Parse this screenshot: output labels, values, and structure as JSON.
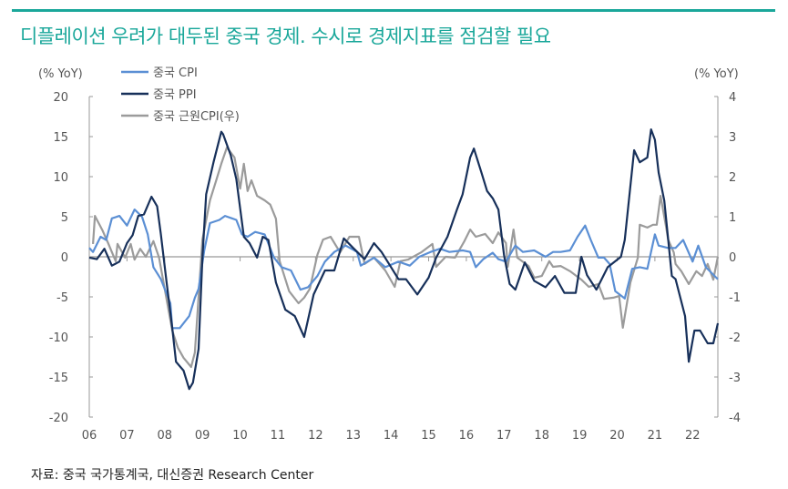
{
  "title": "디플레이션 우려가 대두된 중국 경제. 수시로 경제지표를 점검할 필요",
  "source": "자료: 중국 국가통계국, 대신증권 Research Center",
  "chart_data": {
    "type": "line",
    "title": "",
    "y_left_label": "(% YoY)",
    "y_right_label": "(% YoY)",
    "ylim_left": [
      -20,
      20
    ],
    "ylim_right": [
      -4,
      4
    ],
    "y_left_ticks": [
      20,
      15,
      10,
      5,
      0,
      -5,
      -10,
      -15,
      -20
    ],
    "y_right_ticks": [
      4,
      3,
      2,
      1,
      0,
      -1,
      -2,
      -3,
      -4
    ],
    "x_tick_labels": [
      "06",
      "07",
      "08",
      "09",
      "10",
      "11",
      "12",
      "13",
      "14",
      "15",
      "16",
      "17",
      "18",
      "19",
      "20",
      "21",
      "22"
    ],
    "xlim": [
      2006,
      2022.67
    ],
    "grid": false,
    "legend_position": "top-left",
    "series": [
      {
        "name": "중국 CPI",
        "axis": "left",
        "color": "#5b8fd4",
        "points": [
          [
            2006.0,
            1.1
          ],
          [
            2006.1,
            0.6
          ],
          [
            2006.3,
            2.5
          ],
          [
            2006.45,
            2.1
          ],
          [
            2006.6,
            4.8
          ],
          [
            2006.8,
            5.1
          ],
          [
            2007.0,
            3.9
          ],
          [
            2007.2,
            5.9
          ],
          [
            2007.4,
            5.0
          ],
          [
            2007.55,
            2.8
          ],
          [
            2007.7,
            -1.3
          ],
          [
            2007.9,
            -2.8
          ],
          [
            2008.15,
            -5.8
          ],
          [
            2008.2,
            -8.9
          ],
          [
            2008.4,
            -8.9
          ],
          [
            2008.65,
            -7.4
          ],
          [
            2008.8,
            -5.1
          ],
          [
            2008.9,
            -4.0
          ],
          [
            2009.05,
            0.8
          ],
          [
            2009.2,
            4.2
          ],
          [
            2009.45,
            4.6
          ],
          [
            2009.6,
            5.1
          ],
          [
            2009.9,
            4.6
          ],
          [
            2010.05,
            2.8
          ],
          [
            2010.2,
            2.5
          ],
          [
            2010.4,
            3.1
          ],
          [
            2010.65,
            2.8
          ],
          [
            2010.9,
            -0.1
          ],
          [
            2011.1,
            -1.3
          ],
          [
            2011.35,
            -1.7
          ],
          [
            2011.6,
            -4.1
          ],
          [
            2011.8,
            -3.8
          ],
          [
            2012.05,
            -2.4
          ],
          [
            2012.25,
            -0.6
          ],
          [
            2012.5,
            0.6
          ],
          [
            2012.8,
            1.4
          ],
          [
            2013.1,
            0.6
          ],
          [
            2013.2,
            -1.1
          ],
          [
            2013.55,
            -0.1
          ],
          [
            2013.85,
            -1.3
          ],
          [
            2014.2,
            -0.6
          ],
          [
            2014.5,
            -1.1
          ],
          [
            2014.75,
            0
          ],
          [
            2015.05,
            0.6
          ],
          [
            2015.3,
            1.0
          ],
          [
            2015.55,
            0.6
          ],
          [
            2015.9,
            0.8
          ],
          [
            2016.1,
            0.6
          ],
          [
            2016.25,
            -1.3
          ],
          [
            2016.45,
            -0.3
          ],
          [
            2016.7,
            0.5
          ],
          [
            2016.85,
            -0.3
          ],
          [
            2017.05,
            -0.6
          ],
          [
            2017.3,
            1.4
          ],
          [
            2017.5,
            0.6
          ],
          [
            2017.8,
            0.8
          ],
          [
            2018.1,
            0
          ],
          [
            2018.3,
            0.6
          ],
          [
            2018.5,
            0.6
          ],
          [
            2018.75,
            0.8
          ],
          [
            2018.95,
            2.5
          ],
          [
            2019.15,
            3.9
          ],
          [
            2019.3,
            2.1
          ],
          [
            2019.5,
            -0.1
          ],
          [
            2019.65,
            -0.1
          ],
          [
            2019.8,
            -0.9
          ],
          [
            2019.95,
            -4.3
          ],
          [
            2020.2,
            -5.2
          ],
          [
            2020.4,
            -1.5
          ],
          [
            2020.6,
            -1.3
          ],
          [
            2020.8,
            -1.5
          ],
          [
            2021.0,
            2.8
          ],
          [
            2021.1,
            1.4
          ],
          [
            2021.35,
            1.1
          ],
          [
            2021.55,
            1.1
          ],
          [
            2021.75,
            2.1
          ],
          [
            2022.0,
            -0.6
          ],
          [
            2022.15,
            1.4
          ],
          [
            2022.35,
            -1.3
          ],
          [
            2022.67,
            -2.8
          ]
        ]
      },
      {
        "name": "중국 PPI",
        "axis": "left",
        "color": "#17305a",
        "points": [
          [
            2006.0,
            -0.1
          ],
          [
            2006.2,
            -0.3
          ],
          [
            2006.4,
            1.0
          ],
          [
            2006.6,
            -1.1
          ],
          [
            2006.8,
            -0.6
          ],
          [
            2007.0,
            1.7
          ],
          [
            2007.15,
            2.7
          ],
          [
            2007.3,
            5.1
          ],
          [
            2007.45,
            5.3
          ],
          [
            2007.65,
            7.5
          ],
          [
            2007.8,
            6.3
          ],
          [
            2007.9,
            2.8
          ],
          [
            2008.05,
            -3.2
          ],
          [
            2008.2,
            -8.9
          ],
          [
            2008.3,
            -13.1
          ],
          [
            2008.5,
            -14.2
          ],
          [
            2008.65,
            -16.5
          ],
          [
            2008.75,
            -15.7
          ],
          [
            2008.9,
            -11.5
          ],
          [
            2009.0,
            -0.1
          ],
          [
            2009.1,
            7.8
          ],
          [
            2009.3,
            11.9
          ],
          [
            2009.5,
            15.6
          ],
          [
            2009.55,
            15.3
          ],
          [
            2009.75,
            12.7
          ],
          [
            2009.9,
            9.7
          ],
          [
            2010.1,
            2.5
          ],
          [
            2010.25,
            1.7
          ],
          [
            2010.45,
            -0.1
          ],
          [
            2010.6,
            2.5
          ],
          [
            2010.75,
            2.1
          ],
          [
            2010.95,
            -3.2
          ],
          [
            2011.2,
            -6.6
          ],
          [
            2011.45,
            -7.4
          ],
          [
            2011.7,
            -10.0
          ],
          [
            2011.95,
            -4.7
          ],
          [
            2012.25,
            -1.7
          ],
          [
            2012.5,
            -1.7
          ],
          [
            2012.75,
            2.3
          ],
          [
            2013.0,
            1.1
          ],
          [
            2013.3,
            -0.3
          ],
          [
            2013.55,
            1.7
          ],
          [
            2013.75,
            0.6
          ],
          [
            2013.95,
            -0.9
          ],
          [
            2014.2,
            -2.8
          ],
          [
            2014.4,
            -2.8
          ],
          [
            2014.7,
            -4.7
          ],
          [
            2015.0,
            -2.6
          ],
          [
            2015.2,
            -0.1
          ],
          [
            2015.5,
            2.5
          ],
          [
            2015.75,
            5.9
          ],
          [
            2015.9,
            7.8
          ],
          [
            2016.1,
            12.4
          ],
          [
            2016.2,
            13.5
          ],
          [
            2016.4,
            10.5
          ],
          [
            2016.55,
            8.2
          ],
          [
            2016.7,
            7.3
          ],
          [
            2016.85,
            5.9
          ],
          [
            2017.0,
            0.2
          ],
          [
            2017.15,
            -3.4
          ],
          [
            2017.3,
            -4.1
          ],
          [
            2017.55,
            -0.7
          ],
          [
            2017.8,
            -3.0
          ],
          [
            2018.1,
            -3.8
          ],
          [
            2018.35,
            -2.4
          ],
          [
            2018.6,
            -4.5
          ],
          [
            2018.9,
            -4.5
          ],
          [
            2019.05,
            0
          ],
          [
            2019.2,
            -2.3
          ],
          [
            2019.45,
            -4.1
          ],
          [
            2019.75,
            -1.3
          ],
          [
            2020.1,
            0
          ],
          [
            2020.2,
            2.1
          ],
          [
            2020.45,
            13.3
          ],
          [
            2020.6,
            11.8
          ],
          [
            2020.8,
            12.4
          ],
          [
            2020.9,
            15.9
          ],
          [
            2021.0,
            14.6
          ],
          [
            2021.1,
            10.5
          ],
          [
            2021.25,
            7.0
          ],
          [
            2021.45,
            -2.4
          ],
          [
            2021.55,
            -2.8
          ],
          [
            2021.8,
            -7.4
          ],
          [
            2021.9,
            -13.1
          ],
          [
            2022.05,
            -9.2
          ],
          [
            2022.2,
            -9.2
          ],
          [
            2022.4,
            -10.8
          ],
          [
            2022.55,
            -10.8
          ],
          [
            2022.67,
            -8.3
          ]
        ]
      },
      {
        "name": "중국 근원CPI(우)",
        "axis": "right",
        "color": "#9b9b9b",
        "points": [
          [
            2006.1,
            0.32
          ],
          [
            2006.15,
            1.02
          ],
          [
            2006.35,
            0.66
          ],
          [
            2006.5,
            0.34
          ],
          [
            2006.7,
            -0.11
          ],
          [
            2006.75,
            0.32
          ],
          [
            2006.95,
            -0.02
          ],
          [
            2007.1,
            0.32
          ],
          [
            2007.2,
            -0.07
          ],
          [
            2007.35,
            0.2
          ],
          [
            2007.5,
            0
          ],
          [
            2007.7,
            0.39
          ],
          [
            2007.85,
            -0.02
          ],
          [
            2008.0,
            -0.8
          ],
          [
            2008.2,
            -1.84
          ],
          [
            2008.35,
            -2.27
          ],
          [
            2008.5,
            -2.52
          ],
          [
            2008.7,
            -2.75
          ],
          [
            2008.8,
            -2.39
          ],
          [
            2009.0,
            0.43
          ],
          [
            2009.2,
            1.41
          ],
          [
            2009.35,
            1.86
          ],
          [
            2009.5,
            2.32
          ],
          [
            2009.65,
            2.73
          ],
          [
            2009.85,
            2.48
          ],
          [
            2010.0,
            1.7
          ],
          [
            2010.1,
            2.32
          ],
          [
            2010.2,
            1.64
          ],
          [
            2010.3,
            1.91
          ],
          [
            2010.45,
            1.52
          ],
          [
            2010.65,
            1.41
          ],
          [
            2010.8,
            1.3
          ],
          [
            2010.95,
            0.95
          ],
          [
            2011.05,
            -0.11
          ],
          [
            2011.3,
            -0.86
          ],
          [
            2011.55,
            -1.16
          ],
          [
            2011.7,
            -1.02
          ],
          [
            2011.85,
            -0.8
          ],
          [
            2012.05,
            0.05
          ],
          [
            2012.2,
            0.43
          ],
          [
            2012.4,
            0.5
          ],
          [
            2012.65,
            0.11
          ],
          [
            2012.9,
            0.5
          ],
          [
            2013.15,
            0.5
          ],
          [
            2013.3,
            -0.18
          ],
          [
            2013.55,
            -0.02
          ],
          [
            2013.85,
            -0.34
          ],
          [
            2014.1,
            -0.75
          ],
          [
            2014.25,
            -0.11
          ],
          [
            2014.45,
            -0.07
          ],
          [
            2014.55,
            -0.02
          ],
          [
            2014.8,
            0.11
          ],
          [
            2015.1,
            0.32
          ],
          [
            2015.2,
            -0.25
          ],
          [
            2015.45,
            0
          ],
          [
            2015.7,
            -0.02
          ],
          [
            2015.95,
            0.39
          ],
          [
            2016.1,
            0.68
          ],
          [
            2016.25,
            0.5
          ],
          [
            2016.5,
            0.57
          ],
          [
            2016.7,
            0.34
          ],
          [
            2016.85,
            0.61
          ],
          [
            2017.05,
            0.34
          ],
          [
            2017.1,
            -0.25
          ],
          [
            2017.25,
            0.68
          ],
          [
            2017.35,
            -0.02
          ],
          [
            2017.65,
            -0.23
          ],
          [
            2017.8,
            -0.52
          ],
          [
            2018.0,
            -0.48
          ],
          [
            2018.2,
            -0.11
          ],
          [
            2018.3,
            -0.25
          ],
          [
            2018.5,
            -0.23
          ],
          [
            2018.75,
            -0.36
          ],
          [
            2019.05,
            -0.57
          ],
          [
            2019.25,
            -0.75
          ],
          [
            2019.5,
            -0.68
          ],
          [
            2019.65,
            -1.05
          ],
          [
            2019.9,
            -1.02
          ],
          [
            2020.05,
            -0.98
          ],
          [
            2020.15,
            -1.77
          ],
          [
            2020.35,
            -0.64
          ],
          [
            2020.55,
            -0.02
          ],
          [
            2020.6,
            0.8
          ],
          [
            2020.8,
            0.73
          ],
          [
            2020.95,
            0.8
          ],
          [
            2021.05,
            0.8
          ],
          [
            2021.15,
            1.52
          ],
          [
            2021.3,
            0.73
          ],
          [
            2021.35,
            0.43
          ],
          [
            2021.5,
            0.11
          ],
          [
            2021.55,
            -0.18
          ],
          [
            2021.7,
            -0.36
          ],
          [
            2021.9,
            -0.68
          ],
          [
            2022.1,
            -0.36
          ],
          [
            2022.25,
            -0.48
          ],
          [
            2022.4,
            -0.18
          ],
          [
            2022.55,
            -0.57
          ],
          [
            2022.67,
            0
          ]
        ]
      }
    ]
  }
}
